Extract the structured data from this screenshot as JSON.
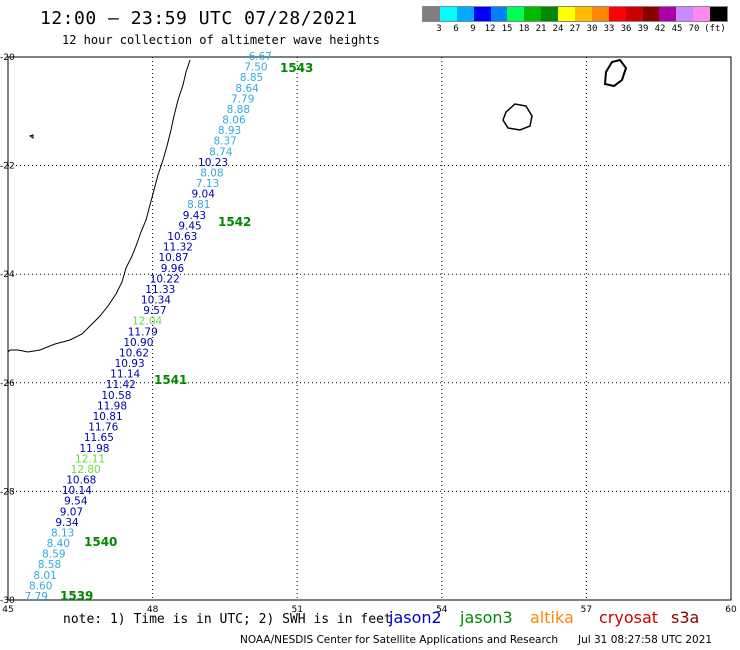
{
  "header": {
    "title": "12:00 – 23:59 UTC 07/28/2021",
    "subtitle": "12 hour collection of altimeter wave heights"
  },
  "legend": {
    "colors": [
      "#7f7f7f",
      "#00ffff",
      "#00aaff",
      "#0000ff",
      "#0080ff",
      "#00ff55",
      "#00bb00",
      "#008800",
      "#ffff00",
      "#ffbb00",
      "#ff8800",
      "#ff0000",
      "#cc0000",
      "#880000",
      "#aa00aa",
      "#cc88ff",
      "#ff88ee",
      "#000000"
    ],
    "labels": [
      "3",
      "6",
      "9",
      "12",
      "15",
      "18",
      "21",
      "24",
      "27",
      "30",
      "33",
      "36",
      "39",
      "42",
      "45",
      "70",
      "(ft)"
    ]
  },
  "axes": {
    "x_ticks": [
      "45",
      "48",
      "51",
      "54",
      "57",
      "60"
    ],
    "y_ticks": [
      "-20",
      "-22",
      "-24",
      "-26",
      "-28",
      "-30"
    ]
  },
  "passes": [
    {
      "label": "1543",
      "color": "#008800"
    },
    {
      "label": "1542",
      "color": "#008800"
    },
    {
      "label": "1541",
      "color": "#008800"
    },
    {
      "label": "1540",
      "color": "#008800"
    },
    {
      "label": "1539",
      "color": "#008800"
    }
  ],
  "track_values": [
    {
      "v": "6.67",
      "c": "#33aadd"
    },
    {
      "v": "7.50",
      "c": "#33aadd"
    },
    {
      "v": "8.85",
      "c": "#33aadd"
    },
    {
      "v": "8.64",
      "c": "#33aadd"
    },
    {
      "v": "7.79",
      "c": "#33aadd"
    },
    {
      "v": "8.88",
      "c": "#33aadd"
    },
    {
      "v": "8.06",
      "c": "#33aadd"
    },
    {
      "v": "8.93",
      "c": "#33aadd"
    },
    {
      "v": "8.37",
      "c": "#33aadd"
    },
    {
      "v": "8.74",
      "c": "#33aadd"
    },
    {
      "v": "10.23",
      "c": "#0000aa"
    },
    {
      "v": "8.08",
      "c": "#33aadd"
    },
    {
      "v": "7.13",
      "c": "#33aadd"
    },
    {
      "v": "9.04",
      "c": "#0000aa"
    },
    {
      "v": "8.81",
      "c": "#33aadd"
    },
    {
      "v": "9.43",
      "c": "#0000aa"
    },
    {
      "v": "9.45",
      "c": "#0000aa"
    },
    {
      "v": "10.63",
      "c": "#0000aa"
    },
    {
      "v": "11.32",
      "c": "#0000aa"
    },
    {
      "v": "10.87",
      "c": "#0000aa"
    },
    {
      "v": "9.96",
      "c": "#0000aa"
    },
    {
      "v": "10.22",
      "c": "#0000aa"
    },
    {
      "v": "11.33",
      "c": "#0000aa"
    },
    {
      "v": "10.34",
      "c": "#0000aa"
    },
    {
      "v": "9.57",
      "c": "#0000aa"
    },
    {
      "v": "12.04",
      "c": "#66dd44"
    },
    {
      "v": "11.79",
      "c": "#0000aa"
    },
    {
      "v": "10.90",
      "c": "#0000aa"
    },
    {
      "v": "10.62",
      "c": "#0000aa"
    },
    {
      "v": "10.93",
      "c": "#0000aa"
    },
    {
      "v": "11.14",
      "c": "#0000aa"
    },
    {
      "v": "11.42",
      "c": "#0000aa"
    },
    {
      "v": "10.58",
      "c": "#0000aa"
    },
    {
      "v": "11.98",
      "c": "#0000aa"
    },
    {
      "v": "10.81",
      "c": "#0000aa"
    },
    {
      "v": "11.76",
      "c": "#0000aa"
    },
    {
      "v": "11.65",
      "c": "#0000aa"
    },
    {
      "v": "11.98",
      "c": "#0000aa"
    },
    {
      "v": "12.11",
      "c": "#66dd44"
    },
    {
      "v": "12.80",
      "c": "#66dd44"
    },
    {
      "v": "10.68",
      "c": "#0000aa"
    },
    {
      "v": "10.14",
      "c": "#0000aa"
    },
    {
      "v": "9.54",
      "c": "#0000aa"
    },
    {
      "v": "9.07",
      "c": "#0000aa"
    },
    {
      "v": "9.34",
      "c": "#0000aa"
    },
    {
      "v": "8.13",
      "c": "#33aadd"
    },
    {
      "v": "8.40",
      "c": "#33aadd"
    },
    {
      "v": "8.59",
      "c": "#33aadd"
    },
    {
      "v": "8.58",
      "c": "#33aadd"
    },
    {
      "v": "8.01",
      "c": "#33aadd"
    },
    {
      "v": "8.60",
      "c": "#33aadd"
    },
    {
      "v": "7.79",
      "c": "#33aadd"
    }
  ],
  "note": "note: 1) Time is in UTC; 2) SWH is in feet",
  "satellites": [
    {
      "name": "jason2",
      "color": "#0000cc"
    },
    {
      "name": "jason3",
      "color": "#008800"
    },
    {
      "name": "altika",
      "color": "#ff8800"
    },
    {
      "name": "cryosat",
      "color": "#cc0000"
    },
    {
      "name": "s3a",
      "color": "#880000"
    }
  ],
  "footer": {
    "source": "NOAA/NESDIS Center for Satellite Applications and Research",
    "date": "Jul 31 08:27:58 UTC 2021"
  }
}
